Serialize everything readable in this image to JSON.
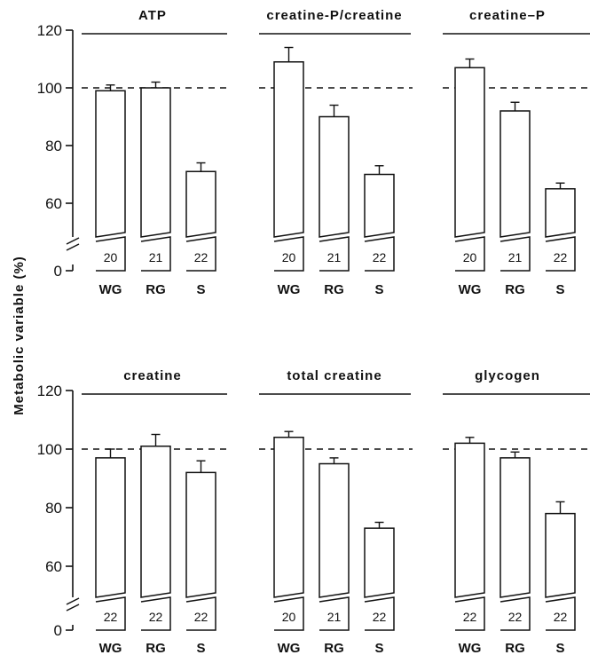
{
  "chart_data": {
    "type": "bar",
    "ylabel": "Metabolic variable (%)",
    "ylim": [
      50,
      120
    ],
    "yticks": [
      0,
      60,
      80,
      100,
      120
    ],
    "reference_line": 100,
    "axis_break": true,
    "panels": [
      {
        "title": "ATP",
        "categories": [
          "WG",
          "RG",
          "S"
        ],
        "values": [
          99,
          100,
          71
        ],
        "errors": [
          2,
          2,
          3
        ],
        "n": [
          "20",
          "21",
          "22"
        ]
      },
      {
        "title": "creatine-P/creatine",
        "categories": [
          "WG",
          "RG",
          "S"
        ],
        "values": [
          109,
          90,
          70
        ],
        "errors": [
          5,
          4,
          3
        ],
        "n": [
          "20",
          "21",
          "22"
        ]
      },
      {
        "title": "creatine–P",
        "categories": [
          "WG",
          "RG",
          "S"
        ],
        "values": [
          107,
          92,
          65
        ],
        "errors": [
          3,
          3,
          2
        ],
        "n": [
          "20",
          "21",
          "22"
        ]
      },
      {
        "title": "creatine",
        "categories": [
          "WG",
          "RG",
          "S"
        ],
        "values": [
          97,
          101,
          92
        ],
        "errors": [
          3,
          4,
          4
        ],
        "n": [
          "22",
          "22",
          "22"
        ]
      },
      {
        "title": "total creatine",
        "categories": [
          "WG",
          "RG",
          "S"
        ],
        "values": [
          104,
          95,
          73
        ],
        "errors": [
          2,
          2,
          2
        ],
        "n": [
          "20",
          "21",
          "22"
        ]
      },
      {
        "title": "glycogen",
        "categories": [
          "WG",
          "RG",
          "S"
        ],
        "values": [
          102,
          97,
          78
        ],
        "errors": [
          2,
          2,
          4
        ],
        "n": [
          "22",
          "22",
          "22"
        ]
      }
    ]
  }
}
